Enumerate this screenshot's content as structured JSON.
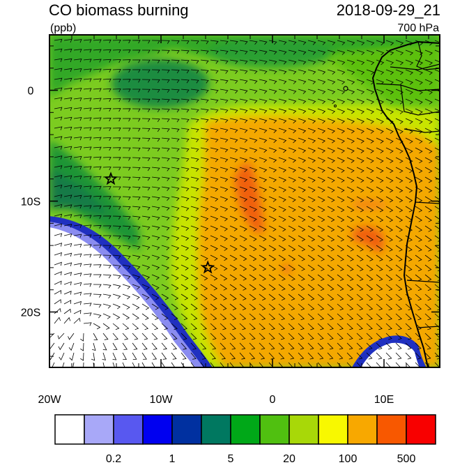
{
  "title": "CO biomass burning",
  "units": "(ppb)",
  "datetime": "2018-09-29_21",
  "level": "700 hPa",
  "map": {
    "lon_range": [
      -20,
      15
    ],
    "lat_range": [
      -25,
      5
    ],
    "x_ticks": [
      {
        "lon": -20,
        "label": "20W"
      },
      {
        "lon": -10,
        "label": "10W"
      },
      {
        "lon": 0,
        "label": "0"
      },
      {
        "lon": 10,
        "label": "10E"
      }
    ],
    "y_ticks": [
      {
        "lat": 0,
        "label": "0"
      },
      {
        "lat": -10,
        "label": "10S"
      },
      {
        "lat": -20,
        "label": "20S"
      }
    ],
    "markers": [
      {
        "name": "star-marker-1",
        "lon": -14.5,
        "lat": -8.0
      },
      {
        "name": "star-marker-2",
        "lon": -5.8,
        "lat": -16.0
      }
    ]
  },
  "colorbar": {
    "colors": [
      "#ffffff",
      "#a8a8f8",
      "#5858f0",
      "#0000f0",
      "#0030a0",
      "#007860",
      "#00a818",
      "#50c010",
      "#a8d808",
      "#f8f800",
      "#f8a800",
      "#f85800",
      "#f80000"
    ],
    "labels": [
      {
        "after_box": 2,
        "text": "0.2"
      },
      {
        "after_box": 4,
        "text": "1"
      },
      {
        "after_box": 6,
        "text": "5"
      },
      {
        "after_box": 8,
        "text": "20"
      },
      {
        "after_box": 10,
        "text": "100"
      },
      {
        "after_box": 12,
        "text": "500"
      }
    ]
  }
}
